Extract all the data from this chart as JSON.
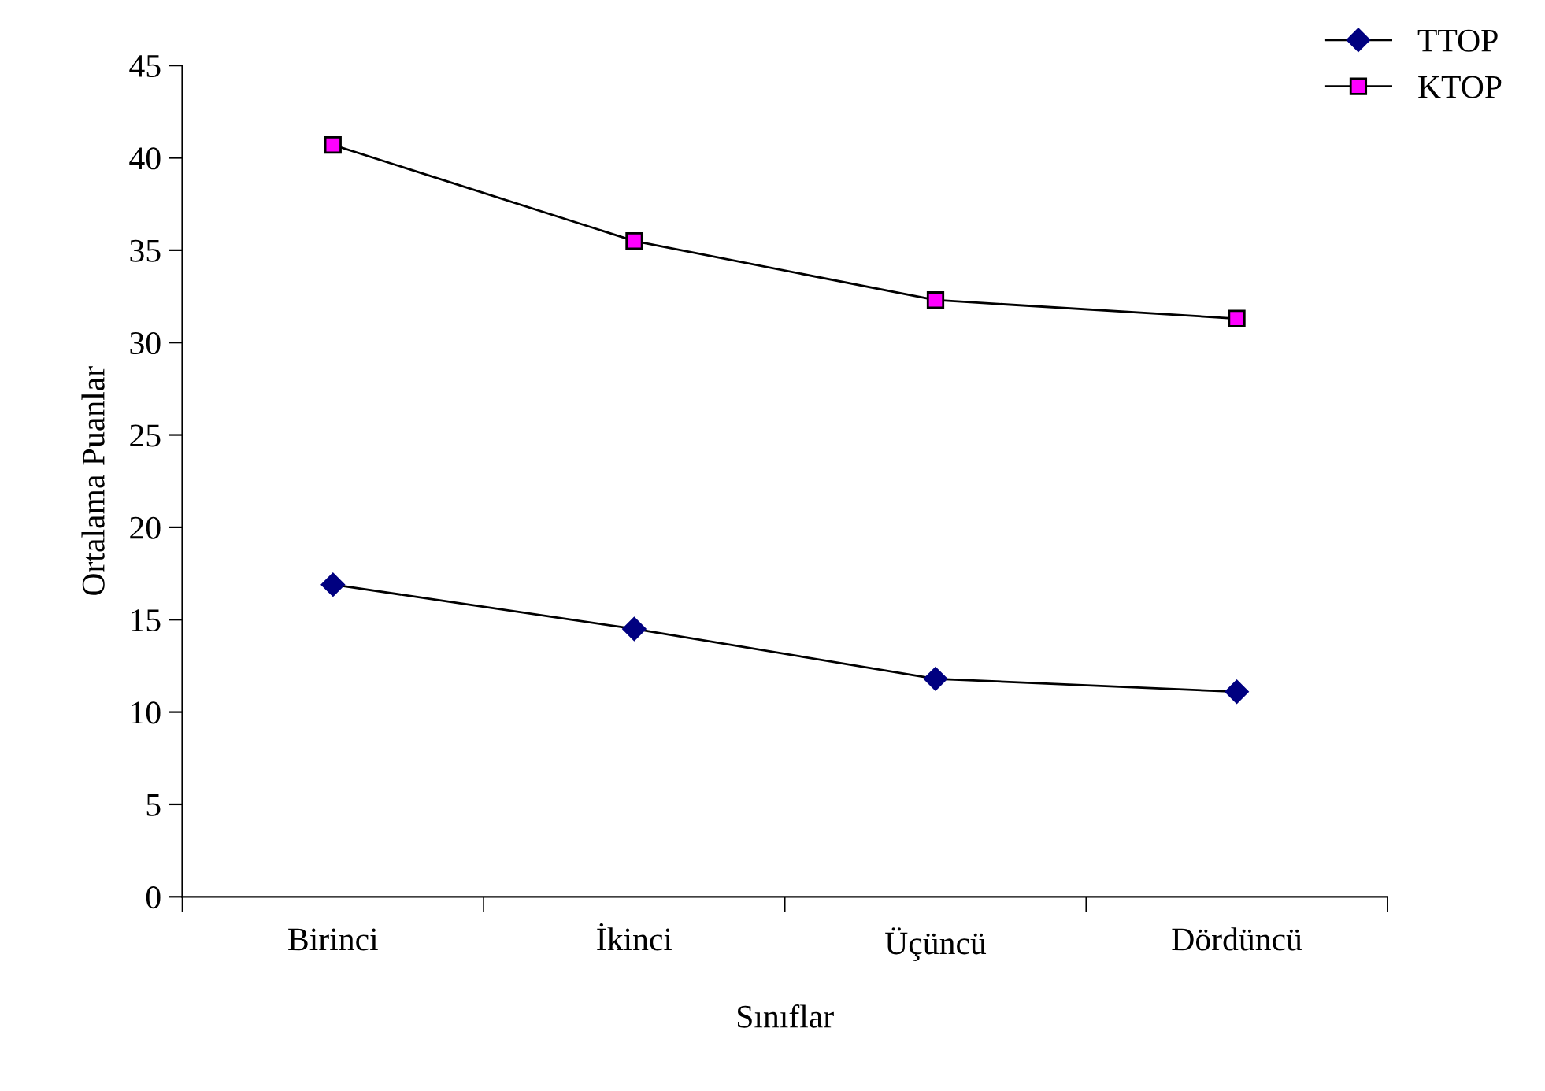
{
  "chart_data": {
    "type": "line",
    "xlabel": "Sınıflar",
    "ylabel": "Ortalama Puanlar",
    "categories": [
      "Birinci",
      "İkinci",
      "Üçüncü",
      "Dördüncü"
    ],
    "series": [
      {
        "name": "TTOP",
        "color": "#000080",
        "marker": "diamond",
        "values": [
          16.9,
          14.5,
          11.8,
          11.1
        ]
      },
      {
        "name": "KTOP",
        "color": "#ff00ff",
        "marker": "square",
        "values": [
          40.7,
          35.5,
          32.3,
          31.3
        ]
      }
    ],
    "ylim": [
      0,
      45
    ],
    "yticks": [
      0,
      5,
      10,
      15,
      20,
      25,
      30,
      35,
      40,
      45
    ],
    "grid": false,
    "legend": "top right",
    "line_style": "solid"
  }
}
